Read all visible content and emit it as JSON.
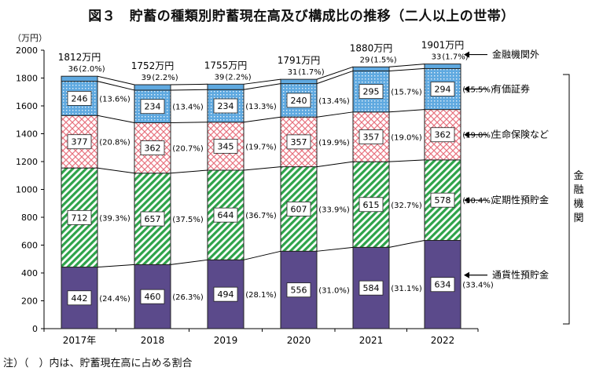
{
  "chart_data": {
    "type": "bar",
    "title": "図３　貯蓄の種類別貯蓄現在高及び構成比の推移（二人以上の世帯）",
    "yunit": "（万円）",
    "note": "注）（　）内は、貯蓄現在高に占める割合",
    "categories": [
      "2017年",
      "2018",
      "2019",
      "2020",
      "2021",
      "2022"
    ],
    "ylim": [
      0,
      2000
    ],
    "yticks": [
      0,
      200,
      400,
      600,
      800,
      1000,
      1200,
      1400,
      1600,
      1800,
      2000
    ],
    "totals": [
      "1812万円",
      "1752万円",
      "1755万円",
      "1791万円",
      "1880万円",
      "1901万円"
    ],
    "series": [
      {
        "name": "通貨性預貯金",
        "values": [
          442,
          460,
          494,
          556,
          584,
          634
        ],
        "shares": [
          "(24.4%)",
          "(26.3%)",
          "(28.1%)",
          "(31.0%)",
          "(31.1%)",
          "(33.4%)"
        ],
        "fill": "#5b4a8b",
        "pattern": "solid"
      },
      {
        "name": "定期性預貯金",
        "values": [
          712,
          657,
          644,
          607,
          615,
          578
        ],
        "shares": [
          "(39.3%)",
          "(37.5%)",
          "(36.7%)",
          "(33.9%)",
          "(32.7%)",
          "(30.4%)"
        ],
        "fill": "#2ea34a",
        "pattern": "diagonal"
      },
      {
        "name": "生命保険など",
        "values": [
          377,
          362,
          345,
          357,
          357,
          362
        ],
        "shares": [
          "(20.8%)",
          "(20.7%)",
          "(19.7%)",
          "(19.9%)",
          "(19.0%)",
          "(19.0%)"
        ],
        "fill": "#e8737f",
        "pattern": "crosshatch"
      },
      {
        "name": "有価証券",
        "values": [
          246,
          234,
          234,
          240,
          295,
          294
        ],
        "shares": [
          "(13.6%)",
          "(13.4%)",
          "(13.3%)",
          "(13.4%)",
          "(15.7%)",
          "(15.5%)"
        ],
        "fill": "#5fa9e0",
        "pattern": "dots"
      },
      {
        "name": "金融機関外",
        "values": [
          36,
          39,
          39,
          31,
          29,
          33
        ],
        "shares": [
          "(2.0%)",
          "(2.2%)",
          "(2.2%)",
          "(1.7%)",
          "(1.5%)",
          "(1.7%)"
        ],
        "fill": "#5fa9e0",
        "pattern": "solid"
      }
    ],
    "bracket_label": "金融機関",
    "grid": false,
    "legend": "right"
  }
}
